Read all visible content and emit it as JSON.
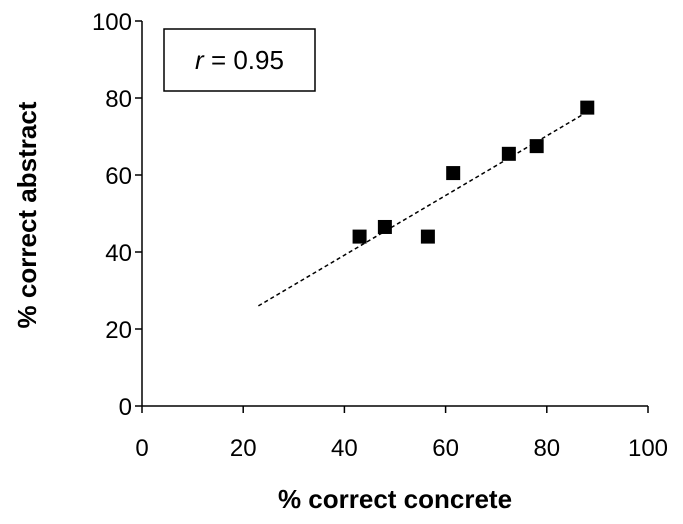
{
  "chart_data": {
    "type": "scatter",
    "title": "",
    "xlabel": "% correct concrete",
    "ylabel": "% correct abstract",
    "xlim": [
      0,
      100
    ],
    "ylim": [
      0,
      100
    ],
    "xticks": [
      0,
      20,
      40,
      60,
      80,
      100
    ],
    "yticks": [
      0,
      20,
      40,
      60,
      80,
      100
    ],
    "grid": false,
    "legend": "none",
    "series": [
      {
        "marker": "square",
        "color": "#000000",
        "points": [
          {
            "x": 43,
            "y": 44
          },
          {
            "x": 48,
            "y": 46.5
          },
          {
            "x": 56.5,
            "y": 44
          },
          {
            "x": 61.5,
            "y": 60.5
          },
          {
            "x": 72.5,
            "y": 65.5
          },
          {
            "x": 78,
            "y": 67.5
          },
          {
            "x": 88,
            "y": 77.5
          }
        ]
      }
    ],
    "trendline": {
      "style": "dashed",
      "color": "#000000",
      "x": [
        23,
        87.5
      ],
      "y": [
        26,
        76
      ]
    },
    "annotation": {
      "variable": "r",
      "text": " = 0.95"
    }
  }
}
